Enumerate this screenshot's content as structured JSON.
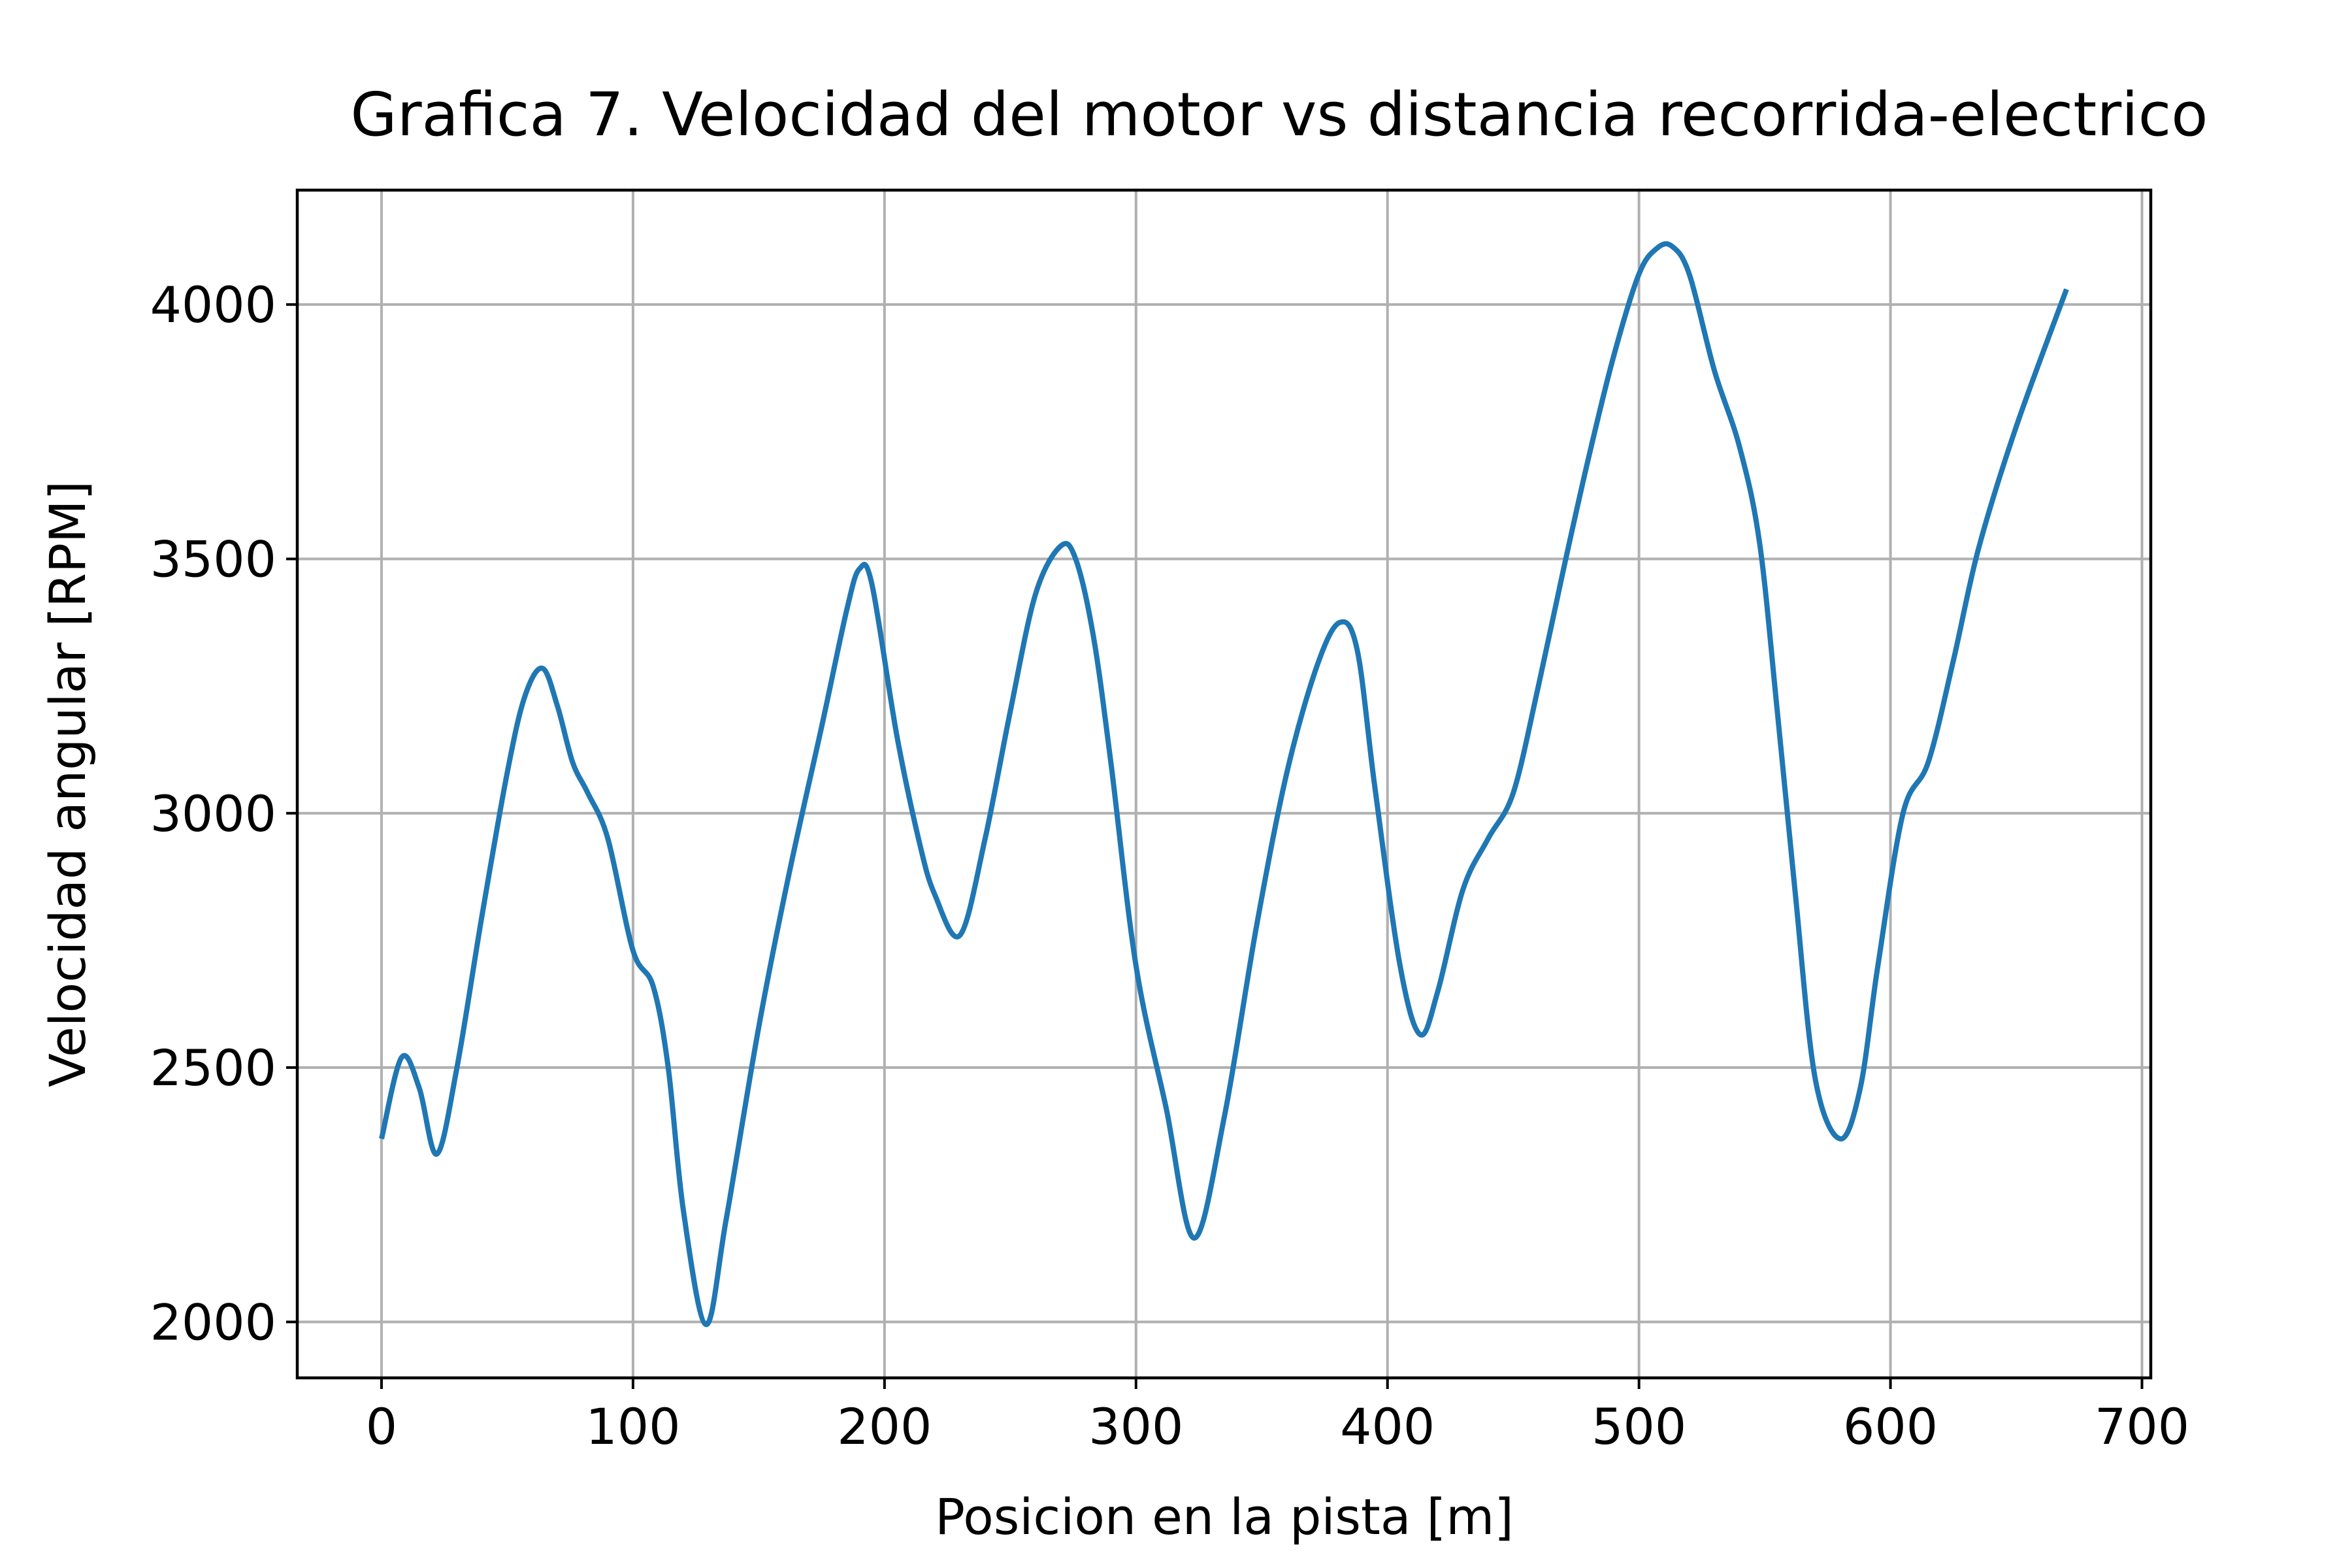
{
  "chart_data": {
    "type": "line",
    "title": "Grafica 7. Velocidad del motor vs distancia recorrida-electrico",
    "xlabel": "Posicion en la pista [m]",
    "ylabel": "Velocidad angular [RPM]",
    "xlim": [
      -33.5,
      703.5
    ],
    "ylim": [
      1890,
      4225
    ],
    "xticks": [
      0,
      100,
      200,
      300,
      400,
      500,
      600,
      700
    ],
    "xtick_labels": [
      "0",
      "100",
      "200",
      "300",
      "400",
      "500",
      "600",
      "700"
    ],
    "yticks": [
      2000,
      2500,
      3000,
      3500,
      4000
    ],
    "ytick_labels": [
      "2000",
      "2500",
      "3000",
      "3500",
      "4000"
    ],
    "grid": true,
    "legend": "none",
    "series": [
      {
        "color": "#1f77b4",
        "x": [
          0,
          8,
          15,
          22,
          30,
          40,
          50,
          57,
          64,
          70,
          76,
          82,
          90,
          100,
          108,
          114,
          120,
          129,
          137,
          150,
          162,
          175,
          185,
          190,
          195,
          205,
          214,
          220,
          230,
          240,
          250,
          260,
          270,
          276,
          283,
          290,
          300,
          312,
          323,
          335,
          348,
          360,
          372,
          381,
          388,
          395,
          405,
          413,
          420,
          430,
          440,
          450,
          460,
          470,
          480,
          490,
          500,
          507,
          513,
          520,
          530,
          540,
          548,
          555,
          562,
          570,
          580,
          588,
          595,
          605,
          615,
          625,
          635,
          650,
          670
        ],
        "values": [
          2360,
          2520,
          2460,
          2330,
          2500,
          2800,
          3080,
          3230,
          3285,
          3210,
          3100,
          3040,
          2950,
          2730,
          2660,
          2500,
          2220,
          1995,
          2200,
          2580,
          2880,
          3170,
          3400,
          3480,
          3450,
          3150,
          2940,
          2840,
          2760,
          2950,
          3200,
          3430,
          3525,
          3500,
          3350,
          3100,
          2700,
          2420,
          2165,
          2400,
          2780,
          3080,
          3290,
          3375,
          3320,
          3050,
          2700,
          2565,
          2650,
          2850,
          2950,
          3040,
          3250,
          3480,
          3700,
          3900,
          4060,
          4110,
          4115,
          4060,
          3870,
          3720,
          3530,
          3200,
          2850,
          2480,
          2360,
          2460,
          2700,
          3000,
          3100,
          3300,
          3520,
          3760,
          4030
        ]
      }
    ]
  }
}
